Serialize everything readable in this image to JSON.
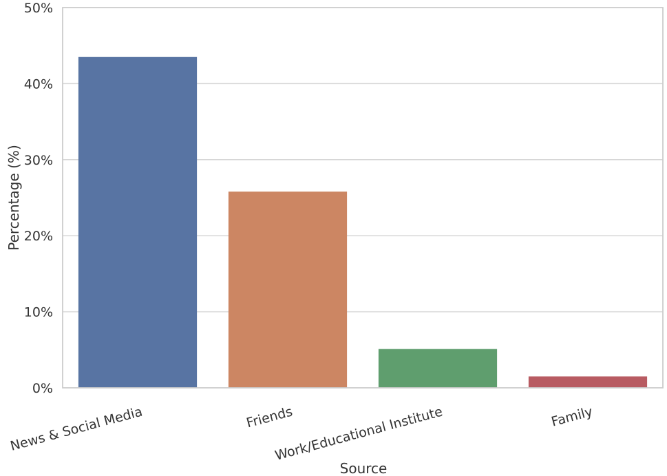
{
  "chart_data": {
    "type": "bar",
    "xlabel": "Source",
    "ylabel": "Percentage (%)",
    "ylim": [
      0,
      50
    ],
    "yticks": [
      "0%",
      "10%",
      "20%",
      "30%",
      "40%",
      "50%"
    ],
    "grid": true,
    "categories": [
      "News & Social Media",
      "Friends",
      "Work/Educational Institute",
      "Family"
    ],
    "values": [
      43.5,
      25.8,
      5.1,
      1.5
    ],
    "colors": [
      "#5874a3",
      "#cc8663",
      "#5f9e6e",
      "#b85b62"
    ]
  }
}
